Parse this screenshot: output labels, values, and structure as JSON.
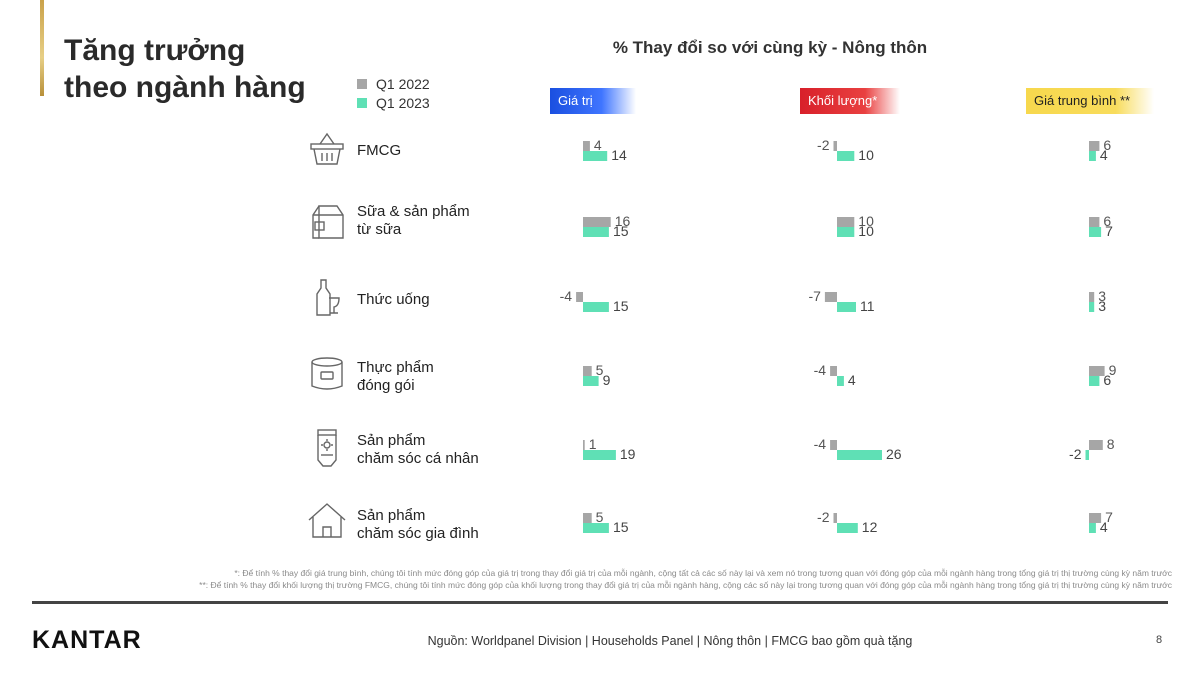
{
  "title_line1": "Tăng trưởng",
  "title_line2": "theo ngành hàng",
  "chart_data": {
    "type": "bar",
    "title": "% Thay đổi so với cùng kỳ - Nông thôn",
    "series_names": [
      "Q1 2022",
      "Q1 2023"
    ],
    "colors": {
      "q1_2022": "#a6a6a6",
      "q1_2023": "#5fe0b5"
    },
    "panels": [
      {
        "label": "Giá trị",
        "rows": [
          [
            4,
            14
          ],
          [
            16,
            15
          ],
          [
            -4,
            15
          ],
          [
            5,
            9
          ],
          [
            1,
            19
          ],
          [
            5,
            15
          ]
        ]
      },
      {
        "label": "Khối lượng*",
        "rows": [
          [
            -2,
            10
          ],
          [
            10,
            10
          ],
          [
            -7,
            11
          ],
          [
            -4,
            4
          ],
          [
            -4,
            26
          ],
          [
            -2,
            12
          ]
        ]
      },
      {
        "label": "Giá trung bình **",
        "rows": [
          [
            6,
            4
          ],
          [
            6,
            7
          ],
          [
            3,
            3
          ],
          [
            9,
            6
          ],
          [
            8,
            -2
          ],
          [
            7,
            4
          ]
        ]
      }
    ],
    "categories": [
      {
        "line1": "FMCG",
        "line2": ""
      },
      {
        "line1": "Sữa & sản phẩm",
        "line2": "từ sữa"
      },
      {
        "line1": "Thức uống",
        "line2": ""
      },
      {
        "line1": "Thực phẩm",
        "line2": "đóng gói"
      },
      {
        "line1": "Sản phẩm",
        "line2": "chăm sóc cá nhân"
      },
      {
        "line1": "Sản phẩm",
        "line2": "chăm sóc gia đình"
      }
    ],
    "icons": [
      "basket-icon",
      "milk-carton-icon",
      "bottle-glass-icon",
      "can-icon",
      "tube-icon",
      "house-icon"
    ]
  },
  "footnote1": "*: Để tính % thay đổi giá trung bình, chúng tôi tính mức đóng góp của giá trị trong thay đổi giá trị của mỗi ngành, cộng tất cả các số này lại và xem nó trong tương quan với đóng góp của mỗi ngành hàng trong tổng giá trị thị trường cùng kỳ năm trước",
  "footnote2": "**: Để tính % thay đổi khối lượng thị trường FMCG, chúng tôi tính mức đóng góp của khối lượng trong thay đổi giá trị của mỗi ngành hàng, cộng các số này lại trong tương quan với đóng góp của mỗi ngành hàng trong tổng giá trị thị trường cùng kỳ năm trước",
  "brand": "KANTAR",
  "source": "Nguồn: Worldpanel Division | Households Panel | Nông thôn | FMCG bao gồm quà tặng",
  "page_number": "8"
}
